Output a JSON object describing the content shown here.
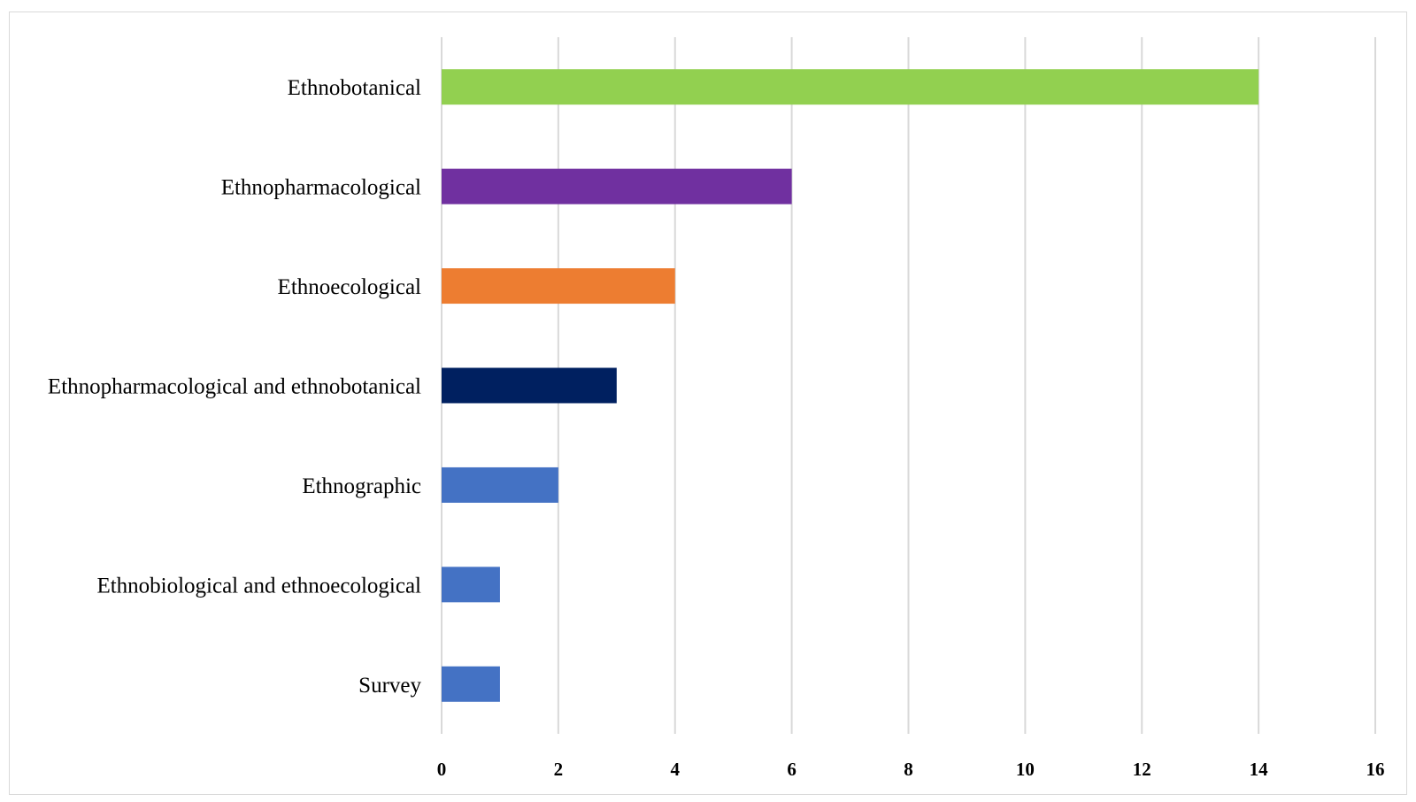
{
  "chart_data": {
    "type": "bar",
    "orientation": "horizontal",
    "title": "",
    "xlabel": "",
    "ylabel": "",
    "categories": [
      "Ethnobotanical",
      "Ethnopharmacological",
      "Ethnoecological",
      "Ethnopharmacological and ethnobotanical",
      "Ethnographic",
      "Ethnobiological and ethnoecological",
      "Survey"
    ],
    "values": [
      14,
      6,
      4,
      3,
      2,
      1,
      1
    ],
    "colors": [
      "#92d050",
      "#7030a0",
      "#ed7d31",
      "#002060",
      "#4472c4",
      "#4472c4",
      "#4472c4"
    ],
    "xlim": [
      0,
      16
    ],
    "xticks": [
      0,
      2,
      4,
      6,
      8,
      10,
      12,
      14,
      16
    ],
    "xtick_labels": [
      "0",
      "2",
      "4",
      "6",
      "8",
      "10",
      "12",
      "14",
      "16"
    ],
    "grid": true,
    "legend": "none"
  }
}
